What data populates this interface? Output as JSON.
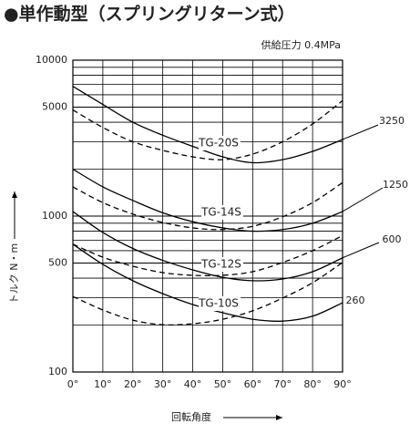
{
  "chart_data": {
    "type": "line",
    "title": "●単作動型（スプリングリターン式）",
    "subtitle": "供給圧力 0.4MPa",
    "x_label": "回転角度",
    "y_label": "トルク N・m",
    "x": [
      0,
      10,
      20,
      30,
      40,
      50,
      60,
      70,
      80,
      90
    ],
    "xlim": [
      0,
      90
    ],
    "xticks": [
      {
        "value": 0,
        "label": "0°"
      },
      {
        "value": 10,
        "label": "10°"
      },
      {
        "value": 20,
        "label": "20°"
      },
      {
        "value": 30,
        "label": "30°"
      },
      {
        "value": 40,
        "label": "40°"
      },
      {
        "value": 50,
        "label": "50°"
      },
      {
        "value": 60,
        "label": "60°"
      },
      {
        "value": 70,
        "label": "70°"
      },
      {
        "value": 80,
        "label": "80°"
      },
      {
        "value": 90,
        "label": "90°"
      }
    ],
    "ylim": [
      100,
      10000
    ],
    "yticks": [
      100,
      500,
      1000,
      5000,
      10000
    ],
    "yminor": [
      200,
      300,
      400,
      600,
      700,
      800,
      900,
      2000,
      3000,
      4000,
      6000,
      7000,
      8000,
      9000
    ],
    "log_y": true,
    "grid": true,
    "series": [
      {
        "name": "TG-20S",
        "rating": 3250,
        "color": "#000000",
        "values": [
          6800,
          5200,
          4000,
          3300,
          2800,
          2400,
          2200,
          2300,
          2600,
          3100
        ],
        "dashed_values": [
          4800,
          3700,
          3000,
          2640,
          2400,
          2300,
          2500,
          3000,
          3900,
          5500
        ]
      },
      {
        "name": "TG-14S",
        "rating": 1250,
        "color": "#000000",
        "values": [
          2000,
          1540,
          1260,
          1050,
          920,
          840,
          800,
          820,
          900,
          1070
        ],
        "dashed_values": [
          1540,
          1220,
          1030,
          910,
          840,
          820,
          860,
          990,
          1220,
          1640
        ]
      },
      {
        "name": "TG-12S",
        "rating": 600,
        "color": "#000000",
        "values": [
          1070,
          785,
          620,
          520,
          452,
          405,
          385,
          395,
          440,
          540
        ],
        "dashed_values": [
          660,
          545,
          477,
          434,
          417,
          417,
          440,
          504,
          600,
          750
        ]
      },
      {
        "name": "TG-10S",
        "rating": 260,
        "color": "#000000",
        "values": [
          660,
          490,
          385,
          318,
          271,
          240,
          218,
          212,
          228,
          278
        ],
        "dashed_values": [
          305,
          250,
          215,
          201,
          204,
          218,
          247,
          298,
          374,
          504
        ]
      }
    ]
  }
}
